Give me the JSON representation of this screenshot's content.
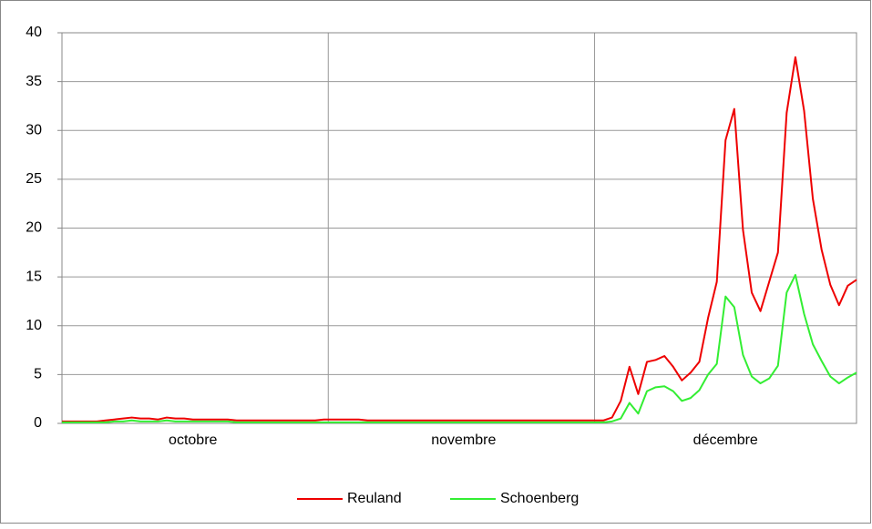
{
  "chart_data": {
    "type": "line",
    "categories": [
      null,
      null,
      null,
      null,
      null,
      null,
      null,
      null,
      null,
      null,
      null,
      null,
      null,
      null,
      null,
      "octobre",
      null,
      null,
      null,
      null,
      null,
      null,
      null,
      null,
      null,
      null,
      null,
      null,
      null,
      null,
      null,
      null,
      null,
      null,
      null,
      null,
      null,
      null,
      null,
      null,
      null,
      null,
      null,
      null,
      null,
      null,
      "novembre",
      null,
      null,
      null,
      null,
      null,
      null,
      null,
      null,
      null,
      null,
      null,
      null,
      null,
      null,
      null,
      null,
      null,
      null,
      null,
      null,
      null,
      null,
      null,
      null,
      null,
      null,
      null,
      null,
      null,
      "décembre",
      null,
      null,
      null,
      null,
      null,
      null,
      null,
      null,
      null,
      null,
      null,
      null,
      null,
      null,
      null
    ],
    "series": [
      {
        "name": "Reuland",
        "color": "#ee0000",
        "values": [
          0.2,
          0.2,
          0.2,
          0.2,
          0.2,
          0.3,
          0.4,
          0.5,
          0.6,
          0.5,
          0.5,
          0.4,
          0.6,
          0.5,
          0.5,
          0.4,
          0.4,
          0.4,
          0.4,
          0.4,
          0.3,
          0.3,
          0.3,
          0.3,
          0.3,
          0.3,
          0.3,
          0.3,
          0.3,
          0.3,
          0.4,
          0.4,
          0.4,
          0.4,
          0.4,
          0.3,
          0.3,
          0.3,
          0.3,
          0.3,
          0.3,
          0.3,
          0.3,
          0.3,
          0.3,
          0.3,
          0.3,
          0.3,
          0.3,
          0.3,
          0.3,
          0.3,
          0.3,
          0.3,
          0.3,
          0.3,
          0.3,
          0.3,
          0.3,
          0.3,
          0.3,
          0.3,
          0.3,
          0.6,
          2.3,
          5.8,
          3.0,
          6.3,
          6.5,
          6.9,
          5.8,
          4.4,
          5.2,
          6.3,
          10.8,
          14.5,
          29.0,
          32.2,
          19.8,
          13.4,
          11.5,
          14.5,
          17.5,
          31.8,
          37.5,
          32.0,
          23.0,
          17.8,
          14.2,
          12.1,
          14.1,
          14.7
        ]
      },
      {
        "name": "Schoenberg",
        "color": "#33ee33",
        "values": [
          0.1,
          0.1,
          0.1,
          0.1,
          0.1,
          0.1,
          0.2,
          0.2,
          0.3,
          0.2,
          0.2,
          0.2,
          0.3,
          0.2,
          0.2,
          0.2,
          0.2,
          0.2,
          0.2,
          0.2,
          0.1,
          0.1,
          0.1,
          0.1,
          0.1,
          0.1,
          0.1,
          0.1,
          0.1,
          0.1,
          0.1,
          0.1,
          0.1,
          0.1,
          0.1,
          0.1,
          0.1,
          0.1,
          0.1,
          0.1,
          0.1,
          0.1,
          0.1,
          0.1,
          0.1,
          0.1,
          0.1,
          0.1,
          0.1,
          0.1,
          0.1,
          0.1,
          0.1,
          0.1,
          0.1,
          0.1,
          0.1,
          0.1,
          0.1,
          0.1,
          0.1,
          0.1,
          0.1,
          0.2,
          0.5,
          2.1,
          1.0,
          3.3,
          3.7,
          3.8,
          3.3,
          2.3,
          2.6,
          3.4,
          5.0,
          6.1,
          13.0,
          11.9,
          7.0,
          4.8,
          4.1,
          4.6,
          5.9,
          13.4,
          15.2,
          11.2,
          8.1,
          6.4,
          4.8,
          4.1,
          4.7,
          5.2
        ]
      }
    ],
    "ylim": [
      0,
      40
    ],
    "yticks": [
      0,
      5,
      10,
      15,
      20,
      25,
      30,
      35,
      40
    ],
    "grid": true,
    "legend": "bottom"
  }
}
